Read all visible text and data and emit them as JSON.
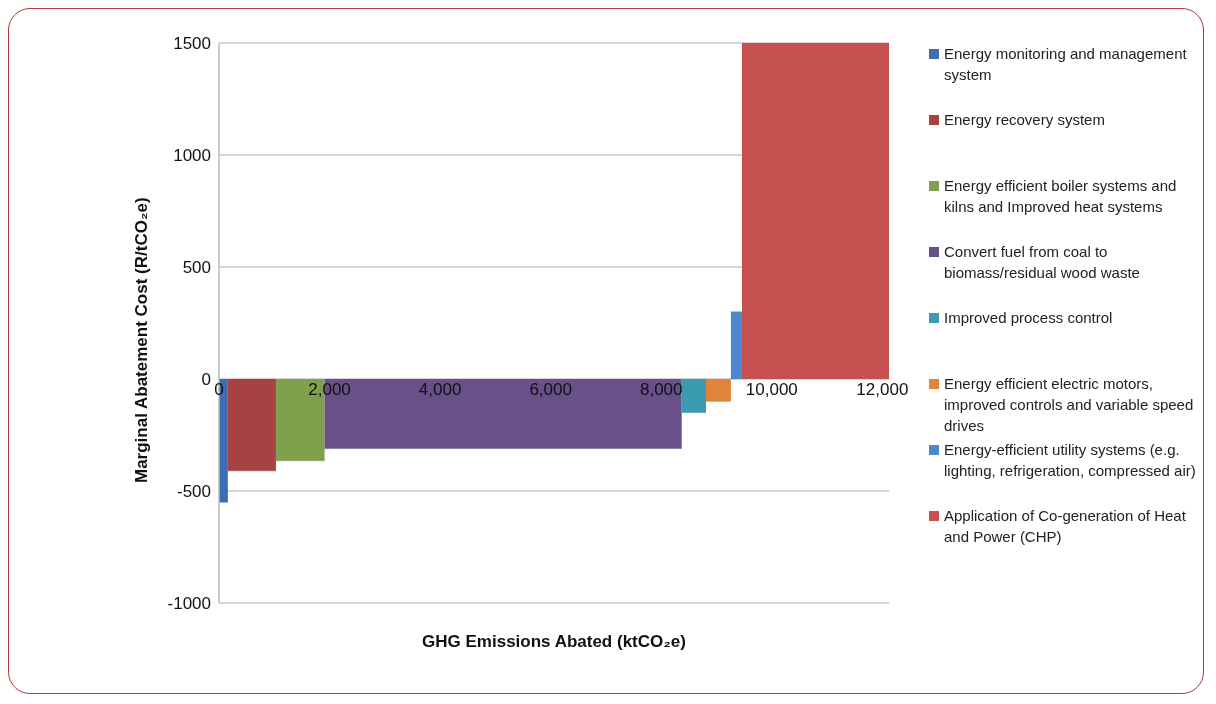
{
  "chart_data": {
    "type": "area",
    "xlabel": "GHG  Emissions Abated (ktCO₂e)",
    "ylabel": "Marginal Abatement Cost (R/tCO₂e)",
    "series": [
      {
        "name": "Energy monitoring and management system",
        "color": "#3d6eb2",
        "x": [
          0,
          160
        ],
        "values": [
          -550,
          -550
        ]
      },
      {
        "name": "Energy recovery system",
        "color": "#a84242",
        "x": [
          160,
          1030
        ],
        "values": [
          -410,
          -410
        ]
      },
      {
        "name": "Energy efficient boiler systems and kilns and Improved heat systems",
        "color": "#7fa04c",
        "x": [
          1030,
          1910
        ],
        "values": [
          -365,
          -365
        ]
      },
      {
        "name": "Convert fuel from coal to biomass/residual wood waste",
        "color": "#6a5088",
        "x": [
          1910,
          8370
        ],
        "values": [
          -310,
          -310
        ]
      },
      {
        "name": "Improved process control",
        "color": "#3c9bb0",
        "x": [
          8370,
          8810
        ],
        "values": [
          -150,
          -150
        ]
      },
      {
        "name": "Energy efficient electric motors,  improved controls and variable speed drives",
        "color": "#e0843a",
        "x": [
          8810,
          9260
        ],
        "values": [
          -100,
          -100
        ]
      },
      {
        "name": "Energy-efficient utility systems (e.g. lighting, refrigeration, compressed air)",
        "color": "#4a87cc",
        "x": [
          9260,
          9460
        ],
        "values": [
          300,
          300
        ]
      },
      {
        "name": "Application of Co-generation of Heat and Power (CHP)",
        "color": "#c65050",
        "x": [
          9460,
          12120
        ],
        "values": [
          1500,
          1500
        ]
      }
    ],
    "xlim": [
      0,
      12120
    ],
    "xticks": [
      {
        "value": 0,
        "label": "0"
      },
      {
        "value": 2000,
        "label": "2,000"
      },
      {
        "value": 4000,
        "label": "4,000"
      },
      {
        "value": 6000,
        "label": "6,000"
      },
      {
        "value": 8000,
        "label": "8,000"
      },
      {
        "value": 10000,
        "label": "10,000"
      },
      {
        "value": 12000,
        "label": "12,000"
      }
    ],
    "ylim": [
      -1000,
      1500
    ],
    "yticks": [
      -1000,
      -500,
      0,
      500,
      1000,
      1500
    ],
    "grid": "y",
    "legend": "right"
  }
}
